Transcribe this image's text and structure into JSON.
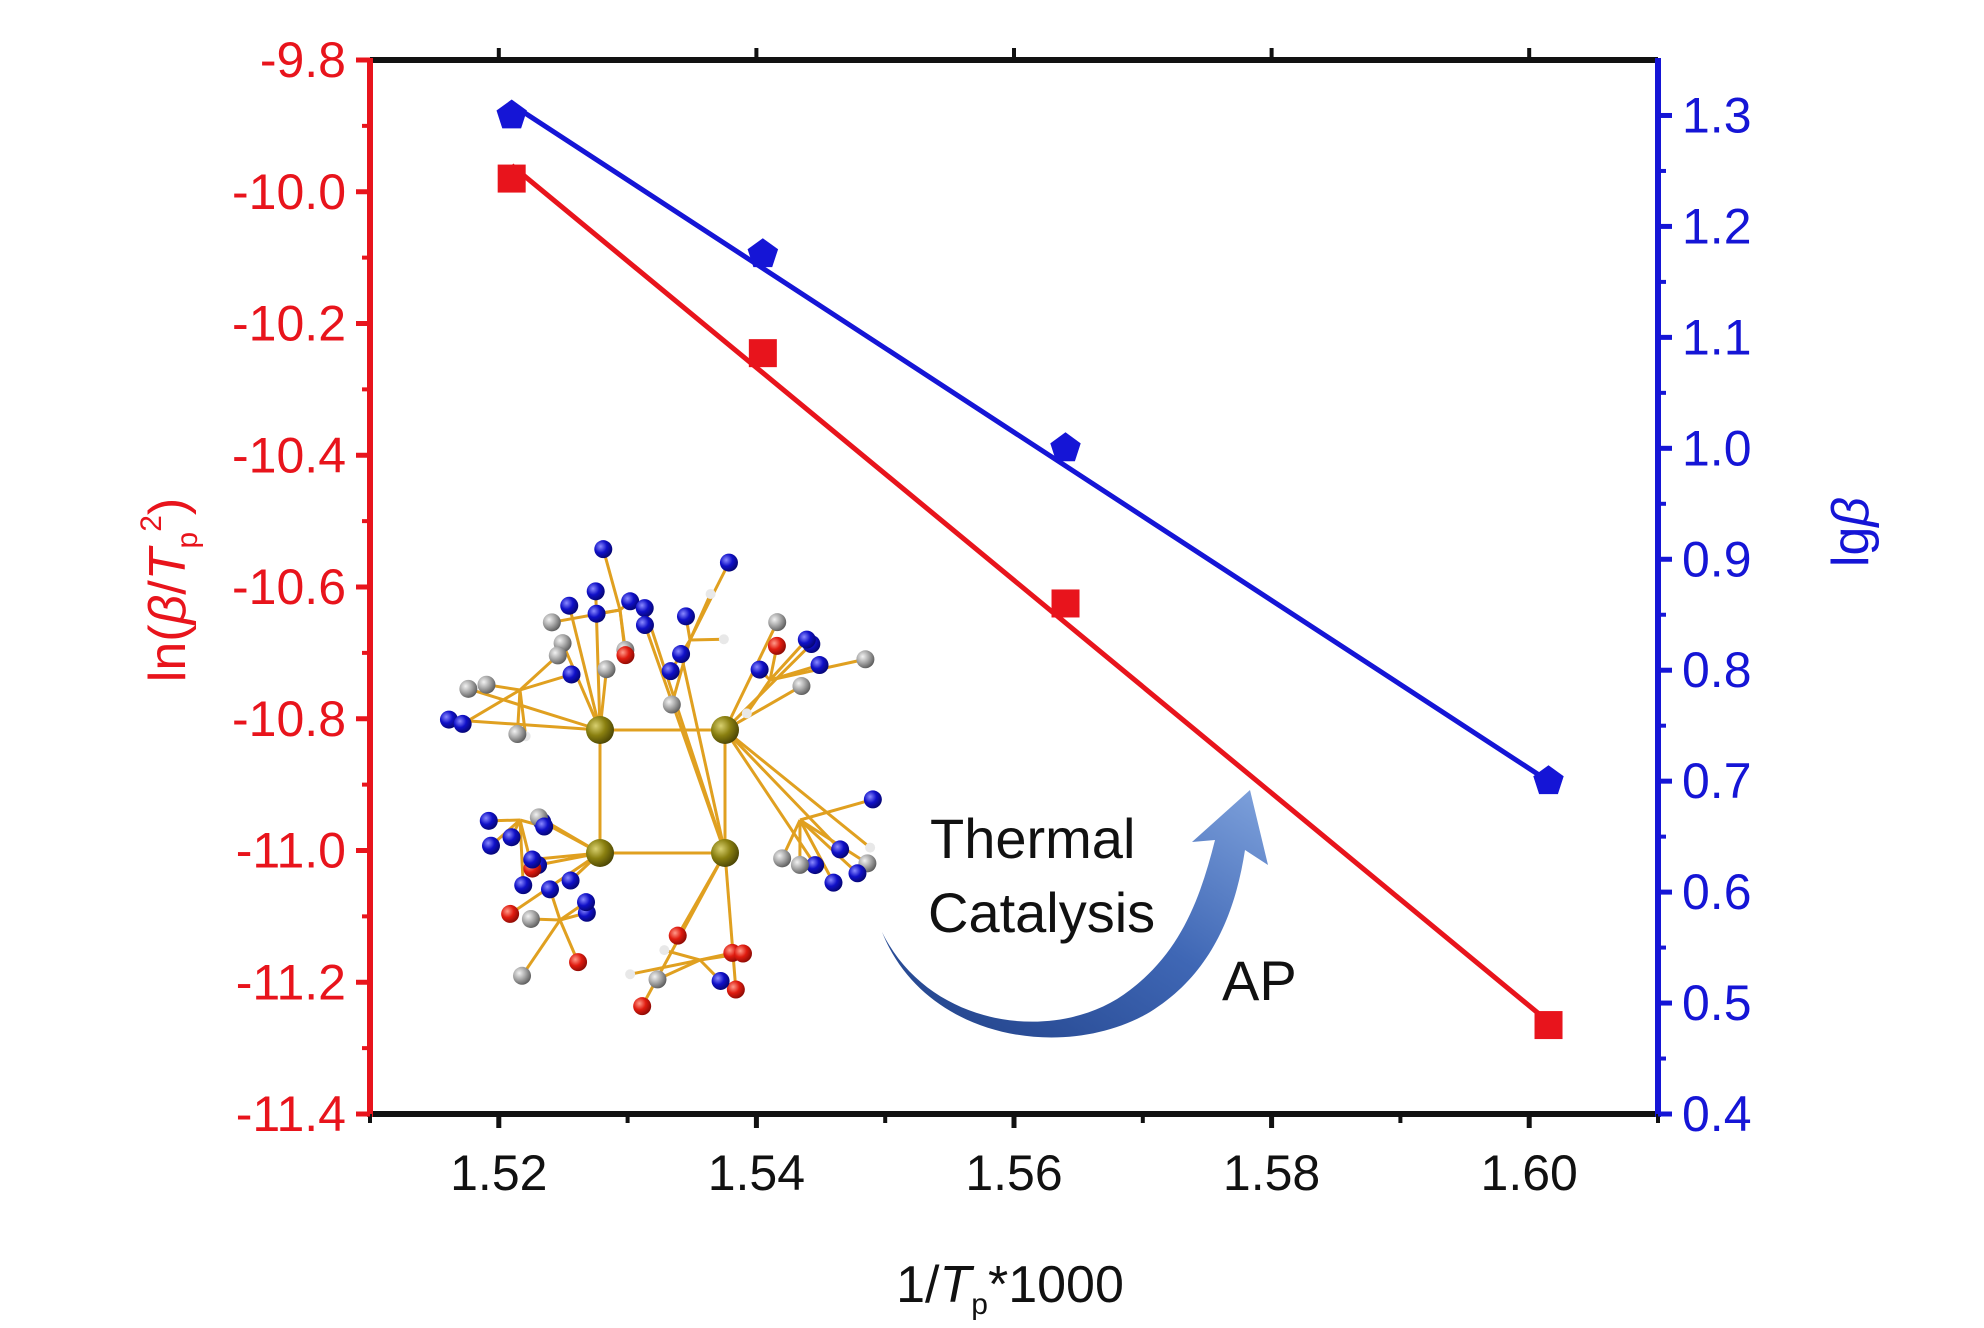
{
  "chart_data": {
    "type": "scatter",
    "x": [
      1.521,
      1.5405,
      1.564,
      1.6015
    ],
    "xlabel_parts": [
      "1/",
      "T",
      "p",
      "*1000"
    ],
    "xlim": [
      1.51,
      1.61
    ],
    "xticks": [
      "1.52",
      "1.54",
      "1.56",
      "1.58",
      "1.60"
    ],
    "xtick_values": [
      1.52,
      1.54,
      1.56,
      1.58,
      1.6
    ],
    "series": [
      {
        "axis": "left",
        "marker": "square",
        "values": [
          -9.98,
          -10.245,
          -10.625,
          -11.265
        ],
        "fit": [
          -9.96,
          -11.26
        ]
      },
      {
        "axis": "right",
        "marker": "pentagon",
        "values": [
          1.3,
          1.175,
          1.0,
          0.7
        ],
        "fit": [
          1.31,
          0.7
        ]
      }
    ],
    "y_left": {
      "label_parts": [
        "ln(",
        "β",
        "/",
        "T",
        "p",
        "2",
        ")"
      ],
      "ylim": [
        -11.4,
        -9.8
      ],
      "ticks": [
        "-9.8",
        "-10.0",
        "-10.2",
        "-10.4",
        "-10.6",
        "-10.8",
        "-11.0",
        "-11.2",
        "-11.4"
      ],
      "tick_values": [
        -9.8,
        -10.0,
        -10.2,
        -10.4,
        -10.6,
        -10.8,
        -11.0,
        -11.2,
        -11.4
      ]
    },
    "y_right": {
      "label_parts": [
        "lg",
        "β"
      ],
      "ylim": [
        0.4,
        1.35
      ],
      "ticks": [
        "1.3",
        "1.2",
        "1.1",
        "1.0",
        "0.9",
        "0.8",
        "0.7",
        "0.6",
        "0.5",
        "0.4"
      ],
      "tick_values": [
        1.3,
        1.2,
        1.1,
        1.0,
        0.9,
        0.8,
        0.7,
        0.6,
        0.5,
        0.4
      ]
    },
    "annotations": [
      "Thermal",
      "Catalysis",
      "AP"
    ],
    "colors": {
      "left": "#e8141c",
      "right": "#1515d6",
      "frame": "#111111",
      "arrow": "#3a62b0"
    }
  }
}
